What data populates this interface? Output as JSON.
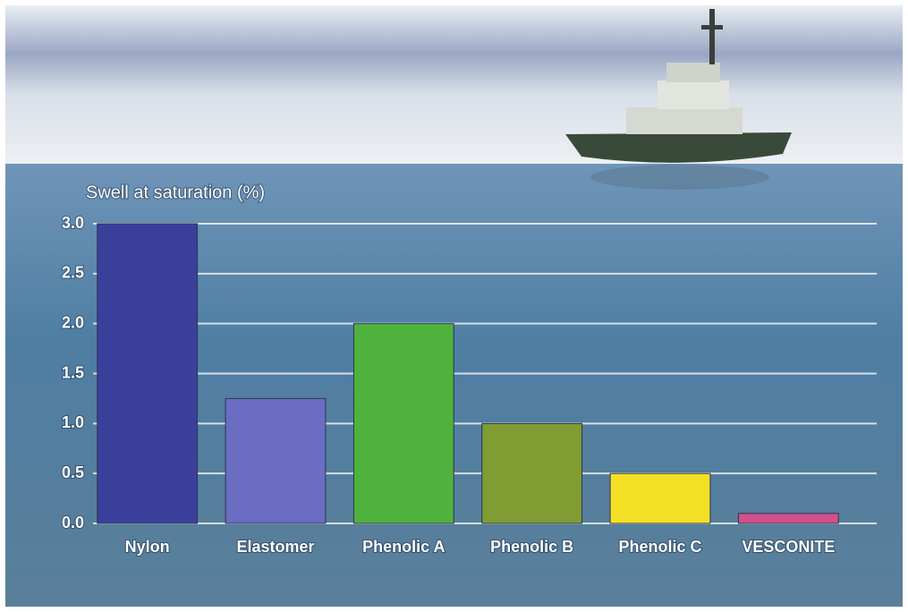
{
  "chart_data": {
    "type": "bar",
    "y_label": "Swell at saturation  (%)",
    "categories": [
      "Nylon",
      "Elastomer",
      "Phenolic A",
      "Phenolic B",
      "Phenolic C",
      "VESCONITE"
    ],
    "values": [
      3.0,
      1.25,
      2.0,
      1.0,
      0.5,
      0.1
    ],
    "colors": [
      "#3b3f9c",
      "#6a6dc2",
      "#4fb23c",
      "#809c32",
      "#f4e024",
      "#d2508c"
    ],
    "ylim": [
      0,
      3.0
    ],
    "yticks": [
      {
        "value": 0,
        "label": "0.0"
      },
      0.5,
      {
        "value": 1,
        "label": "1.0"
      },
      1.5,
      {
        "value": 2,
        "label": "2.0"
      },
      2.5,
      {
        "value": 3,
        "label": "3.0"
      }
    ],
    "grid": true
  }
}
